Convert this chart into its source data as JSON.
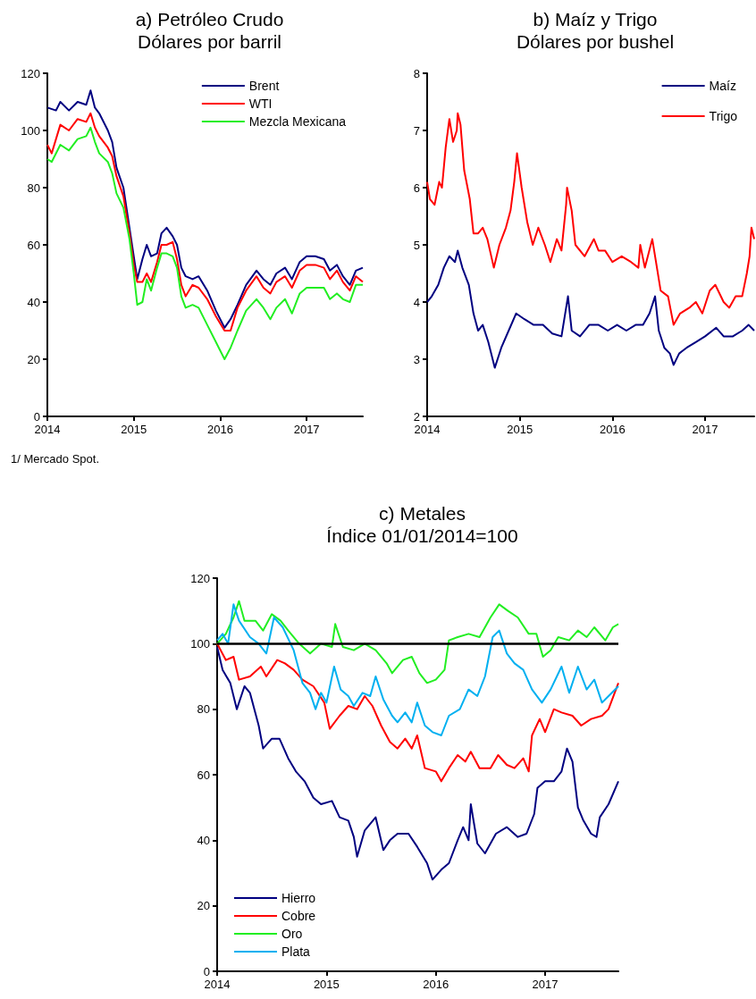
{
  "chart_data": [
    {
      "type": "line",
      "title": "a) Petróleo Crudo",
      "subtitle": "Dólares por barril",
      "annotations": [
        "1/ Mercado Spot."
      ],
      "xlim": [
        2014,
        2017.65
      ],
      "xticks": [
        2014,
        2015,
        2016,
        2017
      ],
      "ylim": [
        0,
        120
      ],
      "yticks": [
        0,
        20,
        40,
        60,
        80,
        100,
        120
      ],
      "legend": "top right",
      "marker": "none",
      "line_style": "solid",
      "series": [
        {
          "name": "Brent",
          "color": "#000080",
          "x": [
            2014.0,
            2014.1,
            2014.15,
            2014.25,
            2014.35,
            2014.45,
            2014.5,
            2014.55,
            2014.6,
            2014.7,
            2014.75,
            2014.8,
            2014.88,
            2014.95,
            2015.0,
            2015.04,
            2015.1,
            2015.15,
            2015.2,
            2015.27,
            2015.32,
            2015.38,
            2015.45,
            2015.5,
            2015.55,
            2015.6,
            2015.68,
            2015.75,
            2015.85,
            2015.95,
            2016.05,
            2016.12,
            2016.2,
            2016.3,
            2016.42,
            2016.5,
            2016.58,
            2016.65,
            2016.75,
            2016.83,
            2016.92,
            2017.0,
            2017.1,
            2017.2,
            2017.27,
            2017.35,
            2017.42,
            2017.5,
            2017.57,
            2017.65
          ],
          "values": [
            108,
            107,
            110,
            107,
            110,
            109,
            114,
            108,
            106,
            100,
            96,
            87,
            80,
            66,
            56,
            48,
            55,
            60,
            56,
            57,
            64,
            66,
            63,
            60,
            52,
            49,
            48,
            49,
            44,
            37,
            31,
            34,
            39,
            46,
            51,
            48,
            46,
            50,
            52,
            48,
            54,
            56,
            56,
            55,
            51,
            53,
            49,
            46,
            51,
            52
          ]
        },
        {
          "name": "WTI",
          "color": "#ff0000",
          "x": [
            2014.0,
            2014.05,
            2014.15,
            2014.25,
            2014.35,
            2014.45,
            2014.5,
            2014.55,
            2014.6,
            2014.7,
            2014.75,
            2014.8,
            2014.88,
            2014.95,
            2015.0,
            2015.04,
            2015.1,
            2015.15,
            2015.2,
            2015.27,
            2015.32,
            2015.38,
            2015.45,
            2015.5,
            2015.55,
            2015.6,
            2015.68,
            2015.75,
            2015.85,
            2015.95,
            2016.05,
            2016.12,
            2016.2,
            2016.3,
            2016.42,
            2016.5,
            2016.58,
            2016.65,
            2016.75,
            2016.83,
            2016.92,
            2017.0,
            2017.1,
            2017.2,
            2017.27,
            2017.35,
            2017.42,
            2017.5,
            2017.57,
            2017.65
          ],
          "values": [
            95,
            92,
            102,
            100,
            104,
            103,
            106,
            101,
            98,
            94,
            91,
            84,
            77,
            64,
            53,
            47,
            47,
            50,
            47,
            54,
            60,
            60,
            61,
            55,
            46,
            42,
            46,
            45,
            41,
            35,
            30,
            30,
            38,
            44,
            49,
            45,
            43,
            47,
            49,
            45,
            51,
            53,
            53,
            52,
            48,
            51,
            47,
            44,
            49,
            47
          ]
        },
        {
          "name": "Mezcla Mexicana",
          "color": "#22ee22",
          "x": [
            2014.0,
            2014.05,
            2014.15,
            2014.25,
            2014.35,
            2014.45,
            2014.5,
            2014.55,
            2014.6,
            2014.7,
            2014.75,
            2014.8,
            2014.88,
            2014.95,
            2015.0,
            2015.04,
            2015.1,
            2015.15,
            2015.2,
            2015.27,
            2015.32,
            2015.38,
            2015.45,
            2015.5,
            2015.55,
            2015.6,
            2015.68,
            2015.75,
            2015.85,
            2015.95,
            2016.05,
            2016.12,
            2016.2,
            2016.3,
            2016.42,
            2016.5,
            2016.58,
            2016.65,
            2016.75,
            2016.83,
            2016.92,
            2017.0,
            2017.1,
            2017.2,
            2017.27,
            2017.35,
            2017.42,
            2017.5,
            2017.57,
            2017.65
          ],
          "values": [
            90,
            89,
            95,
            93,
            97,
            98,
            101,
            96,
            92,
            89,
            85,
            78,
            73,
            62,
            50,
            39,
            40,
            48,
            44,
            52,
            57,
            57,
            56,
            52,
            42,
            38,
            39,
            38,
            32,
            26,
            20,
            24,
            30,
            37,
            41,
            38,
            34,
            38,
            41,
            36,
            43,
            45,
            45,
            45,
            41,
            43,
            41,
            40,
            46,
            46
          ]
        }
      ]
    },
    {
      "type": "line",
      "title": "b) Maíz y Trigo",
      "subtitle": "Dólares por bushel",
      "xlim": [
        2014,
        2017.53
      ],
      "xticks": [
        2014,
        2015,
        2016,
        2017
      ],
      "ylim": [
        2,
        8
      ],
      "yticks": [
        2,
        3,
        4,
        5,
        6,
        7,
        8
      ],
      "legend": "top right",
      "marker": "none",
      "line_style": "solid",
      "series": [
        {
          "name": "Maíz",
          "color": "#000080",
          "x": [
            2014.0,
            2014.05,
            2014.12,
            2014.18,
            2014.24,
            2014.3,
            2014.33,
            2014.38,
            2014.45,
            2014.5,
            2014.55,
            2014.6,
            2014.66,
            2014.73,
            2014.8,
            2014.88,
            2014.96,
            2015.05,
            2015.15,
            2015.25,
            2015.35,
            2015.45,
            2015.5,
            2015.52,
            2015.56,
            2015.65,
            2015.75,
            2015.85,
            2015.95,
            2016.05,
            2016.15,
            2016.25,
            2016.33,
            2016.4,
            2016.46,
            2016.5,
            2016.56,
            2016.62,
            2016.66,
            2016.72,
            2016.8,
            2016.9,
            2017.0,
            2017.12,
            2017.2,
            2017.3,
            2017.4,
            2017.47,
            2017.53
          ],
          "values": [
            4.0,
            4.1,
            4.3,
            4.6,
            4.8,
            4.7,
            4.9,
            4.6,
            4.3,
            3.8,
            3.5,
            3.6,
            3.3,
            2.85,
            3.2,
            3.5,
            3.8,
            3.7,
            3.6,
            3.6,
            3.45,
            3.4,
            3.9,
            4.1,
            3.5,
            3.4,
            3.6,
            3.6,
            3.5,
            3.6,
            3.5,
            3.6,
            3.6,
            3.8,
            4.1,
            3.5,
            3.2,
            3.1,
            2.9,
            3.1,
            3.2,
            3.3,
            3.4,
            3.55,
            3.4,
            3.4,
            3.5,
            3.6,
            3.5
          ]
        },
        {
          "name": "Trigo",
          "color": "#ff0000",
          "x": [
            2014.0,
            2014.03,
            2014.08,
            2014.13,
            2014.16,
            2014.2,
            2014.24,
            2014.28,
            2014.32,
            2014.33,
            2014.36,
            2014.4,
            2014.46,
            2014.5,
            2014.55,
            2014.6,
            2014.65,
            2014.72,
            2014.78,
            2014.85,
            2014.9,
            2014.94,
            2014.97,
            2015.02,
            2015.08,
            2015.14,
            2015.2,
            2015.27,
            2015.33,
            2015.4,
            2015.45,
            2015.5,
            2015.51,
            2015.56,
            2015.6,
            2015.7,
            2015.8,
            2015.85,
            2015.92,
            2016.0,
            2016.1,
            2016.2,
            2016.28,
            2016.3,
            2016.35,
            2016.43,
            2016.47,
            2016.52,
            2016.6,
            2016.66,
            2016.73,
            2016.83,
            2016.9,
            2016.97,
            2017.05,
            2017.11,
            2017.2,
            2017.26,
            2017.33,
            2017.4,
            2017.45,
            2017.48,
            2017.5,
            2017.53
          ],
          "values": [
            6.1,
            5.8,
            5.7,
            6.1,
            6.0,
            6.7,
            7.2,
            6.8,
            7.0,
            7.3,
            7.1,
            6.3,
            5.8,
            5.2,
            5.2,
            5.3,
            5.1,
            4.6,
            5.0,
            5.3,
            5.6,
            6.1,
            6.6,
            6.0,
            5.4,
            5.0,
            5.3,
            5.0,
            4.7,
            5.1,
            4.9,
            5.7,
            6.0,
            5.6,
            5.0,
            4.8,
            5.1,
            4.9,
            4.9,
            4.7,
            4.8,
            4.7,
            4.6,
            5.0,
            4.6,
            5.1,
            4.7,
            4.2,
            4.1,
            3.6,
            3.8,
            3.9,
            4.0,
            3.8,
            4.2,
            4.3,
            4.0,
            3.9,
            4.1,
            4.1,
            4.5,
            4.8,
            5.3,
            5.1
          ]
        }
      ]
    },
    {
      "type": "line",
      "title": "c) Metales",
      "subtitle": "Índice 01/01/2014=100",
      "xlim": [
        2014,
        2017.67
      ],
      "xticks": [
        2014,
        2015,
        2016,
        2017
      ],
      "ylim": [
        0,
        120
      ],
      "yticks": [
        0,
        20,
        40,
        60,
        80,
        100,
        120
      ],
      "legend": "bottom left",
      "marker": "none",
      "line_style": "solid",
      "ref_lines": [
        {
          "axis": "y",
          "value": 100,
          "color": "#000000"
        }
      ],
      "series": [
        {
          "name": "Hierro",
          "color": "#000080",
          "x": [
            2014.0,
            2014.05,
            2014.12,
            2014.18,
            2014.25,
            2014.3,
            2014.38,
            2014.42,
            2014.5,
            2014.57,
            2014.65,
            2014.72,
            2014.8,
            2014.88,
            2014.95,
            2015.05,
            2015.12,
            2015.2,
            2015.25,
            2015.28,
            2015.35,
            2015.45,
            2015.52,
            2015.58,
            2015.65,
            2015.75,
            2015.83,
            2015.92,
            2015.97,
            2016.05,
            2016.12,
            2016.2,
            2016.25,
            2016.3,
            2016.32,
            2016.38,
            2016.45,
            2016.55,
            2016.65,
            2016.75,
            2016.83,
            2016.9,
            2016.93,
            2017.0,
            2017.08,
            2017.15,
            2017.2,
            2017.25,
            2017.3,
            2017.35,
            2017.42,
            2017.47,
            2017.5,
            2017.58,
            2017.67
          ],
          "values": [
            99,
            92,
            88,
            80,
            87,
            85,
            75,
            68,
            71,
            71,
            65,
            61,
            58,
            53,
            51,
            52,
            47,
            46,
            41,
            35,
            43,
            47,
            37,
            40,
            42,
            42,
            38,
            33,
            28,
            31,
            33,
            40,
            44,
            40,
            51,
            39,
            36,
            42,
            44,
            41,
            42,
            48,
            56,
            58,
            58,
            61,
            68,
            64,
            50,
            46,
            42,
            41,
            47,
            51,
            58
          ]
        },
        {
          "name": "Cobre",
          "color": "#ff0000",
          "x": [
            2014.0,
            2014.08,
            2014.15,
            2014.2,
            2014.3,
            2014.4,
            2014.45,
            2014.55,
            2014.62,
            2014.7,
            2014.78,
            2014.88,
            2014.98,
            2015.03,
            2015.12,
            2015.2,
            2015.28,
            2015.35,
            2015.42,
            2015.5,
            2015.58,
            2015.65,
            2015.72,
            2015.78,
            2015.83,
            2015.9,
            2016.0,
            2016.05,
            2016.12,
            2016.2,
            2016.27,
            2016.32,
            2016.4,
            2016.5,
            2016.57,
            2016.65,
            2016.72,
            2016.8,
            2016.85,
            2016.88,
            2016.95,
            2017.0,
            2017.08,
            2017.15,
            2017.25,
            2017.33,
            2017.42,
            2017.52,
            2017.58,
            2017.67
          ],
          "values": [
            100,
            95,
            96,
            89,
            90,
            93,
            90,
            95,
            94,
            92,
            89,
            87,
            82,
            74,
            78,
            81,
            80,
            84,
            81,
            75,
            70,
            68,
            71,
            68,
            72,
            62,
            61,
            58,
            62,
            66,
            64,
            67,
            62,
            62,
            66,
            63,
            62,
            65,
            61,
            72,
            77,
            73,
            80,
            79,
            78,
            75,
            77,
            78,
            80,
            88
          ]
        },
        {
          "name": "Oro",
          "color": "#22ee22",
          "x": [
            2014.0,
            2014.08,
            2014.15,
            2014.2,
            2014.25,
            2014.35,
            2014.42,
            2014.5,
            2014.58,
            2014.65,
            2014.75,
            2014.85,
            2014.95,
            2015.05,
            2015.08,
            2015.15,
            2015.25,
            2015.35,
            2015.45,
            2015.55,
            2015.6,
            2015.7,
            2015.78,
            2015.85,
            2015.92,
            2016.0,
            2016.08,
            2016.12,
            2016.2,
            2016.3,
            2016.4,
            2016.5,
            2016.58,
            2016.66,
            2016.75,
            2016.85,
            2016.92,
            2016.98,
            2017.05,
            2017.12,
            2017.22,
            2017.3,
            2017.38,
            2017.45,
            2017.55,
            2017.62,
            2017.67
          ],
          "values": [
            100,
            103,
            108,
            113,
            107,
            107,
            104,
            109,
            107,
            104,
            100,
            97,
            100,
            99,
            106,
            99,
            98,
            100,
            98,
            94,
            91,
            95,
            96,
            91,
            88,
            89,
            92,
            101,
            102,
            103,
            102,
            108,
            112,
            110,
            108,
            103,
            103,
            96,
            98,
            102,
            101,
            104,
            102,
            105,
            101,
            105,
            106
          ]
        },
        {
          "name": "Plata",
          "color": "#00b0f0",
          "x": [
            2014.0,
            2014.05,
            2014.1,
            2014.15,
            2014.2,
            2014.3,
            2014.38,
            2014.45,
            2014.52,
            2014.6,
            2014.7,
            2014.78,
            2014.85,
            2014.9,
            2014.95,
            2015.0,
            2015.07,
            2015.13,
            2015.2,
            2015.25,
            2015.33,
            2015.4,
            2015.45,
            2015.52,
            2015.6,
            2015.65,
            2015.72,
            2015.78,
            2015.83,
            2015.9,
            2015.97,
            2016.05,
            2016.12,
            2016.22,
            2016.3,
            2016.38,
            2016.45,
            2016.52,
            2016.58,
            2016.65,
            2016.72,
            2016.8,
            2016.88,
            2016.97,
            2017.05,
            2017.15,
            2017.22,
            2017.3,
            2017.38,
            2017.45,
            2017.52,
            2017.58,
            2017.67
          ],
          "values": [
            101,
            103,
            100,
            112,
            107,
            102,
            100,
            97,
            108,
            105,
            98,
            88,
            85,
            80,
            85,
            82,
            93,
            86,
            84,
            81,
            85,
            84,
            90,
            83,
            78,
            76,
            79,
            76,
            82,
            75,
            73,
            72,
            78,
            80,
            86,
            84,
            90,
            102,
            104,
            97,
            94,
            92,
            86,
            82,
            86,
            93,
            85,
            93,
            86,
            89,
            82,
            84,
            87
          ]
        }
      ]
    }
  ]
}
